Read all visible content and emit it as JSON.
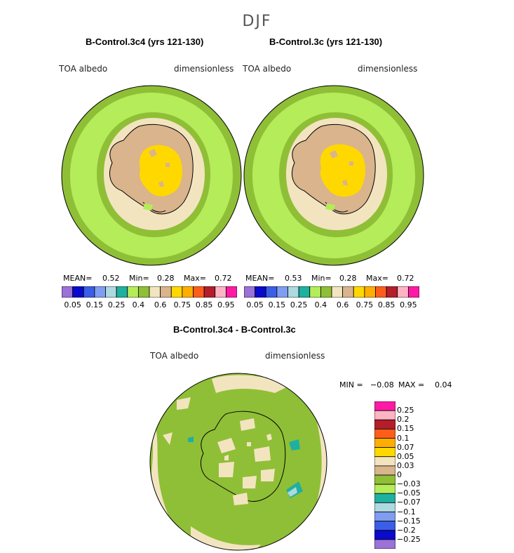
{
  "season": "DJF",
  "palette": {
    "abs_colors": [
      "#9b72d8",
      "#0a0acd",
      "#3b5ee8",
      "#7f9ef0",
      "#aed9e0",
      "#1fb0a0",
      "#b5ec5a",
      "#8fbf36",
      "#f3e4c0",
      "#d9b48c",
      "#ffd800",
      "#ffae00",
      "#ff5e1a",
      "#b41e2a",
      "#ffb4c4",
      "#ff1aa6"
    ],
    "abs_labels": [
      "0.05",
      "0.15",
      "0.25",
      "0.4",
      "0.6",
      "0.75",
      "0.85",
      "0.95"
    ],
    "diff_colors": [
      "#9b72d8",
      "#0a0acd",
      "#3b5ee8",
      "#7f9ef0",
      "#aed9e0",
      "#1fb0a0",
      "#b5ec5a",
      "#8fbf36",
      "#d9b48c",
      "#f3e4c0",
      "#ffd800",
      "#ffae00",
      "#ff5e1a",
      "#b41e2a",
      "#ffb4c4",
      "#ff1aa6"
    ],
    "diff_labels": [
      "0.25",
      "0.2",
      "0.15",
      "0.1",
      "0.07",
      "0.05",
      "0.03",
      "0",
      "−0.03",
      "−0.05",
      "−0.07",
      "−0.1",
      "−0.15",
      "−0.2",
      "−0.25"
    ]
  },
  "panels": {
    "left": {
      "title": "B-Control.3c4 (yrs 121-130)",
      "variable": "TOA albedo",
      "units": "dimensionless",
      "mean_label": "MEAN=",
      "mean": "0.52",
      "min_label": "Min=",
      "min": "0.28",
      "max_label": "Max=",
      "max": "0.72"
    },
    "right": {
      "title": "B-Control.3c (yrs 121-130)",
      "variable": "TOA albedo",
      "units": "dimensionless",
      "mean_label": "MEAN=",
      "mean": "0.53",
      "min_label": "Min=",
      "min": "0.28",
      "max_label": "Max=",
      "max": "0.72"
    },
    "diff": {
      "title": "B-Control.3c4 - B-Control.3c",
      "variable": "TOA albedo",
      "units": "dimensionless",
      "min_label": "MIN =",
      "min": "−0.08",
      "max_label": "MAX =",
      "max": "0.04"
    }
  }
}
